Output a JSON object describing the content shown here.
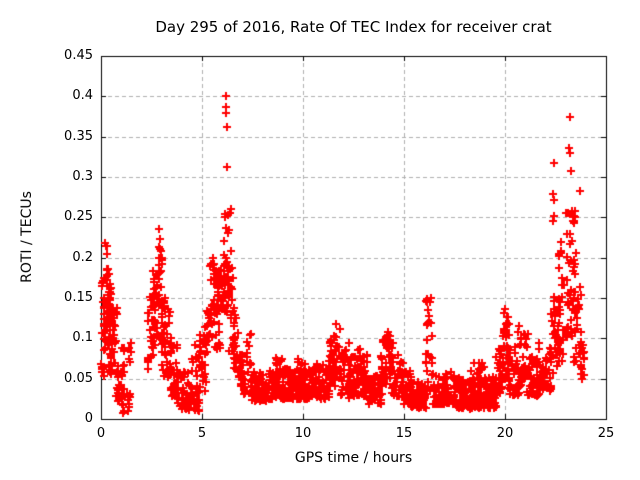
{
  "figure": {
    "title": "Day 295 of 2016, Rate Of TEC Index for receiver crat",
    "xlabel": "GPS time / hours",
    "ylabel": "ROTI / TECUs"
  },
  "chart_data": {
    "type": "scatter",
    "title": "Day 295 of 2016, Rate Of TEC Index for receiver crat",
    "xlabel": "GPS time / hours",
    "ylabel": "ROTI / TECUs",
    "xlim": [
      0,
      25
    ],
    "ylim": [
      0,
      0.45
    ],
    "xticks": {
      "values": [
        0,
        5,
        10,
        15,
        20,
        25
      ],
      "labels": [
        "0",
        "5",
        "10",
        "15",
        "20",
        "25"
      ]
    },
    "yticks": {
      "values": [
        0,
        0.05,
        0.1,
        0.15,
        0.2,
        0.25,
        0.3,
        0.35,
        0.4,
        0.45
      ],
      "labels": [
        "0",
        "0.05",
        "0.1",
        "0.15",
        "0.2",
        "0.25",
        "0.3",
        "0.35",
        "0.4",
        "0.45"
      ]
    },
    "grid": true,
    "grid_style": "dashed",
    "grid_color": "#b0b0b0",
    "axis_color": "#000000",
    "background": "#ffffff",
    "legend": null,
    "marker": {
      "symbol": "plus",
      "color": "#ff0000",
      "size": 9,
      "stroke": 2
    },
    "seed": 295,
    "cluster_format": "[t_start_hours, t_end_hours, count, y_min_TECU, y_max_TECU, low_bias_exponent]",
    "point_clusters": [
      [
        0.02,
        0.18,
        20,
        0.05,
        0.175,
        1.2
      ],
      [
        0.12,
        0.5,
        48,
        0.085,
        0.18,
        1.2
      ],
      [
        0.18,
        0.38,
        5,
        0.18,
        0.215,
        1.0
      ],
      [
        0.4,
        0.8,
        32,
        0.055,
        0.14,
        1.2
      ],
      [
        0.75,
        1.15,
        30,
        0.022,
        0.095,
        1.3
      ],
      [
        1.0,
        1.45,
        15,
        0.006,
        0.035,
        1.2
      ],
      [
        1.3,
        1.5,
        5,
        0.055,
        0.1,
        1.0
      ],
      [
        2.3,
        2.62,
        26,
        0.06,
        0.155,
        1.2
      ],
      [
        2.55,
        2.8,
        26,
        0.08,
        0.19,
        1.2
      ],
      [
        2.78,
        3.05,
        30,
        0.09,
        0.215,
        1.2
      ],
      [
        3.0,
        3.45,
        42,
        0.05,
        0.15,
        1.35
      ],
      [
        3.4,
        3.8,
        32,
        0.028,
        0.105,
        1.35
      ],
      [
        3.75,
        4.35,
        36,
        0.012,
        0.058,
        1.4
      ],
      [
        4.3,
        4.9,
        30,
        0.01,
        0.042,
        1.3
      ],
      [
        4.45,
        4.8,
        8,
        0.05,
        0.095,
        1.1
      ],
      [
        4.85,
        5.25,
        26,
        0.03,
        0.105,
        1.25
      ],
      [
        5.15,
        5.45,
        18,
        0.09,
        0.135,
        1.1
      ],
      [
        5.35,
        5.65,
        18,
        0.1,
        0.2,
        1.15
      ],
      [
        5.6,
        6.0,
        30,
        0.085,
        0.185,
        1.0
      ],
      [
        5.75,
        6.3,
        26,
        0.13,
        0.185,
        1.0
      ],
      [
        6.0,
        6.35,
        26,
        0.14,
        0.26,
        1.15
      ],
      [
        6.3,
        6.6,
        24,
        0.08,
        0.21,
        1.25
      ],
      [
        6.55,
        6.85,
        22,
        0.055,
        0.14,
        1.25
      ],
      [
        6.8,
        7.25,
        28,
        0.028,
        0.08,
        1.3
      ],
      [
        7.2,
        7.45,
        10,
        0.055,
        0.105,
        1.15
      ],
      [
        7.4,
        8.6,
        95,
        0.022,
        0.06,
        1.45
      ],
      [
        8.55,
        9.0,
        30,
        0.025,
        0.08,
        1.5
      ],
      [
        9.0,
        10.15,
        105,
        0.025,
        0.062,
        1.45
      ],
      [
        9.7,
        10.0,
        8,
        0.055,
        0.078,
        1.0
      ],
      [
        10.1,
        11.35,
        110,
        0.025,
        0.068,
        1.45
      ],
      [
        11.3,
        11.6,
        26,
        0.04,
        0.1,
        1.2
      ],
      [
        11.5,
        11.85,
        24,
        0.05,
        0.112,
        1.25
      ],
      [
        11.8,
        12.3,
        36,
        0.03,
        0.095,
        1.35
      ],
      [
        12.25,
        12.7,
        34,
        0.026,
        0.082,
        1.35
      ],
      [
        12.65,
        13.15,
        38,
        0.028,
        0.09,
        1.3
      ],
      [
        13.1,
        13.9,
        55,
        0.018,
        0.055,
        1.35
      ],
      [
        13.85,
        14.2,
        24,
        0.04,
        0.1,
        1.2
      ],
      [
        14.1,
        14.45,
        24,
        0.045,
        0.108,
        1.2
      ],
      [
        14.4,
        14.95,
        36,
        0.028,
        0.082,
        1.35
      ],
      [
        14.9,
        15.4,
        36,
        0.018,
        0.06,
        1.35
      ],
      [
        15.35,
        16.1,
        58,
        0.013,
        0.046,
        1.35
      ],
      [
        16.05,
        16.45,
        30,
        0.03,
        0.152,
        1.65
      ],
      [
        16.4,
        17.6,
        92,
        0.018,
        0.058,
        1.45
      ],
      [
        17.55,
        19.6,
        175,
        0.013,
        0.052,
        1.45
      ],
      [
        18.3,
        19.0,
        10,
        0.055,
        0.07,
        1.0
      ],
      [
        19.55,
        19.95,
        30,
        0.028,
        0.09,
        1.3
      ],
      [
        19.9,
        20.2,
        28,
        0.05,
        0.135,
        1.3
      ],
      [
        20.15,
        20.7,
        34,
        0.03,
        0.09,
        1.35
      ],
      [
        20.65,
        21.15,
        34,
        0.04,
        0.12,
        1.4
      ],
      [
        21.1,
        21.7,
        44,
        0.028,
        0.08,
        1.35
      ],
      [
        21.65,
        22.3,
        48,
        0.035,
        0.095,
        1.3
      ],
      [
        22.25,
        22.7,
        32,
        0.05,
        0.16,
        1.25
      ],
      [
        22.65,
        23.05,
        28,
        0.07,
        0.22,
        1.2
      ],
      [
        23.0,
        23.45,
        34,
        0.1,
        0.265,
        1.1
      ],
      [
        23.4,
        23.75,
        24,
        0.065,
        0.21,
        1.2
      ],
      [
        23.7,
        23.95,
        16,
        0.048,
        0.115,
        1.2
      ]
    ],
    "outlier_points": [
      [
        0.22,
        0.218
      ],
      [
        0.3,
        0.205
      ],
      [
        2.87,
        0.235
      ],
      [
        2.92,
        0.223
      ],
      [
        5.55,
        0.2
      ],
      [
        6.17,
        0.4
      ],
      [
        6.19,
        0.387
      ],
      [
        6.2,
        0.379
      ],
      [
        6.22,
        0.362
      ],
      [
        6.26,
        0.312
      ],
      [
        6.4,
        0.255
      ],
      [
        6.45,
        0.26
      ],
      [
        11.62,
        0.118
      ],
      [
        14.22,
        0.108
      ],
      [
        16.3,
        0.145
      ],
      [
        16.32,
        0.15
      ],
      [
        20.0,
        0.136
      ],
      [
        22.37,
        0.279
      ],
      [
        22.39,
        0.246
      ],
      [
        22.41,
        0.252
      ],
      [
        22.42,
        0.317
      ],
      [
        22.43,
        0.272
      ],
      [
        23.19,
        0.336
      ],
      [
        23.2,
        0.375
      ],
      [
        23.21,
        0.33
      ],
      [
        23.28,
        0.308
      ],
      [
        23.42,
        0.252
      ],
      [
        23.43,
        0.243
      ],
      [
        23.44,
        0.246
      ],
      [
        23.45,
        0.258
      ],
      [
        23.47,
        0.25
      ],
      [
        23.65,
        0.141
      ],
      [
        23.7,
        0.283
      ]
    ]
  }
}
